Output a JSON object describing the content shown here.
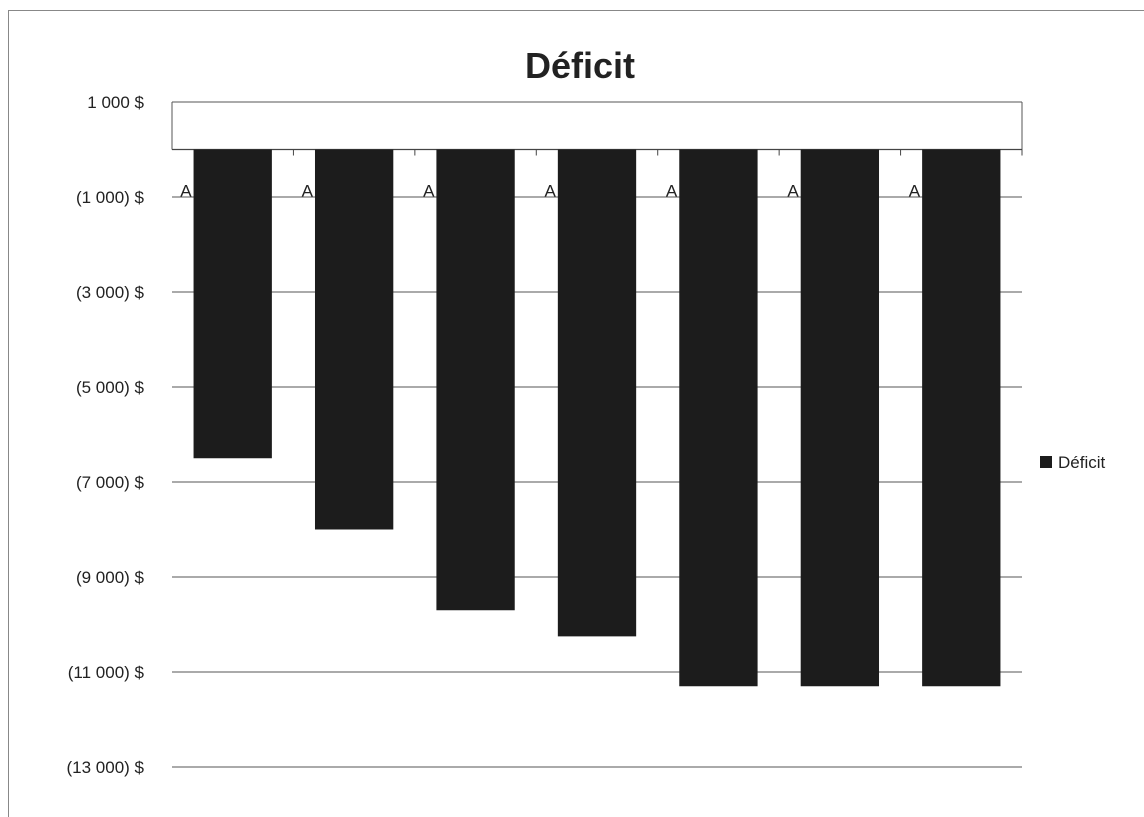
{
  "chart_data": {
    "type": "bar",
    "title": "Déficit",
    "categories": [
      "A",
      "A",
      "A",
      "A",
      "A",
      "A",
      "A"
    ],
    "series": [
      {
        "name": "Déficit",
        "values": [
          -6500,
          -8000,
          -9700,
          -10250,
          -11300,
          -11300,
          -11300
        ]
      }
    ],
    "ylim": [
      -13000,
      1000
    ],
    "yticks": [
      1000,
      -1000,
      -3000,
      -5000,
      -7000,
      -9000,
      -11000,
      -13000
    ],
    "ytick_labels": [
      "1 000 $",
      "(1 000) $",
      "(3 000) $",
      "(5 000) $",
      "(7 000) $",
      "(9 000) $",
      "(11 000) $",
      "(13 000) $"
    ],
    "grid": true,
    "legend": "right",
    "bar_color": "#1c1c1c"
  }
}
